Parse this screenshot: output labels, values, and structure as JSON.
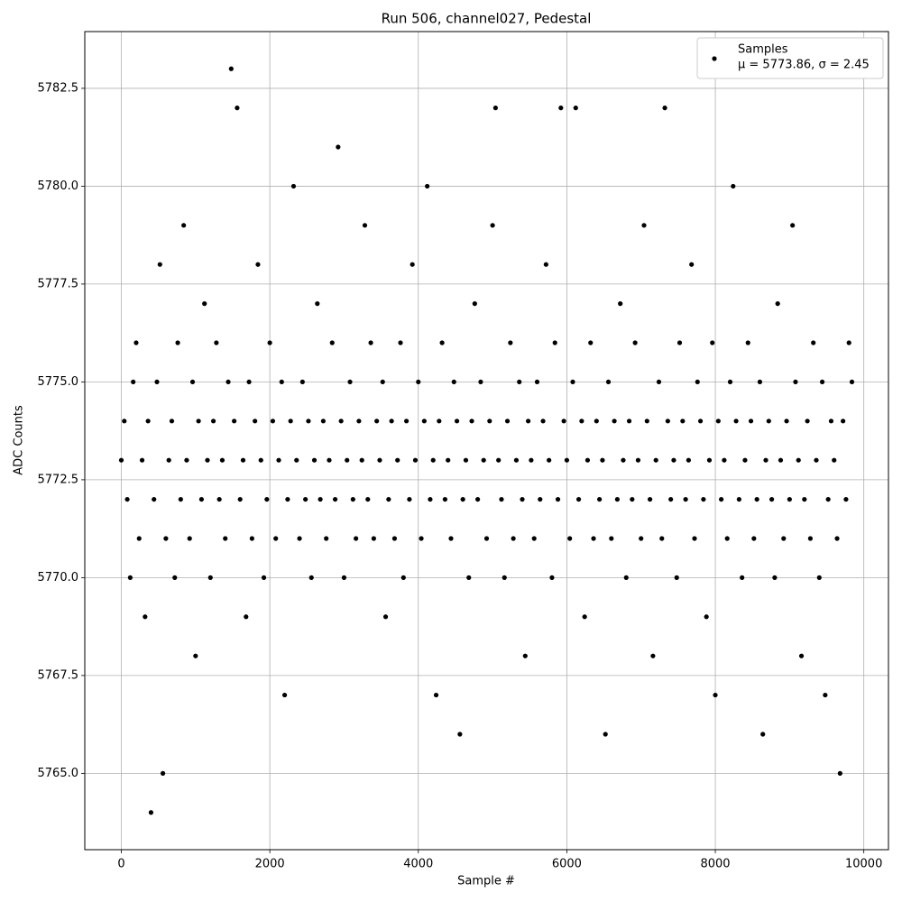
{
  "chart_data": {
    "type": "scatter",
    "title": "Run 506, channel027, Pedestal",
    "xlabel": "Sample #",
    "ylabel": "ADC Counts",
    "legend_note": "μ = 5773.86, σ = 2.45",
    "legend": "upper right",
    "grid": true,
    "xlim": [
      -492,
      10332
    ],
    "ylim": [
      5763.05,
      5783.95
    ],
    "xticks": [
      0,
      2000,
      4000,
      6000,
      8000,
      10000
    ],
    "yticks": [
      {
        "value": 5765,
        "label": "5765.0"
      },
      {
        "value": 5767.5,
        "label": "5767.5"
      },
      {
        "value": 5770,
        "label": "5770.0"
      },
      {
        "value": 5772.5,
        "label": "5772.5"
      },
      {
        "value": 5775,
        "label": "5775.0"
      },
      {
        "value": 5777.5,
        "label": "5777.5"
      },
      {
        "value": 5780,
        "label": "5780.0"
      },
      {
        "value": 5782.5,
        "label": "5782.5"
      }
    ],
    "series": [
      {
        "name": "Samples",
        "color": "#000000",
        "x": [
          0,
          40,
          80,
          120,
          160,
          200,
          240,
          280,
          320,
          360,
          400,
          440,
          480,
          520,
          560,
          600,
          640,
          680,
          720,
          760,
          800,
          840,
          880,
          920,
          960,
          1000,
          1040,
          1080,
          1120,
          1160,
          1200,
          1240,
          1280,
          1320,
          1360,
          1400,
          1440,
          1480,
          1520,
          1560,
          1600,
          1640,
          1680,
          1720,
          1760,
          1800,
          1840,
          1880,
          1920,
          1960,
          2000,
          2040,
          2080,
          2120,
          2160,
          2200,
          2240,
          2280,
          2320,
          2360,
          2400,
          2440,
          2480,
          2520,
          2560,
          2600,
          2640,
          2680,
          2720,
          2760,
          2800,
          2840,
          2880,
          2920,
          2960,
          3000,
          3040,
          3080,
          3120,
          3160,
          3200,
          3240,
          3280,
          3320,
          3360,
          3400,
          3440,
          3480,
          3520,
          3560,
          3600,
          3640,
          3680,
          3720,
          3760,
          3800,
          3840,
          3880,
          3920,
          3960,
          4000,
          4040,
          4080,
          4120,
          4160,
          4200,
          4240,
          4280,
          4320,
          4360,
          4400,
          4440,
          4480,
          4520,
          4560,
          4600,
          4640,
          4680,
          4720,
          4760,
          4800,
          4840,
          4880,
          4920,
          4960,
          5000,
          5040,
          5080,
          5120,
          5160,
          5200,
          5240,
          5280,
          5320,
          5360,
          5400,
          5440,
          5480,
          5520,
          5560,
          5600,
          5640,
          5680,
          5720,
          5760,
          5800,
          5840,
          5880,
          5920,
          5960,
          6000,
          6040,
          6080,
          6120,
          6160,
          6200,
          6240,
          6280,
          6320,
          6360,
          6400,
          6440,
          6480,
          6520,
          6560,
          6600,
          6640,
          6680,
          6720,
          6760,
          6800,
          6840,
          6880,
          6920,
          6960,
          7000,
          7040,
          7080,
          7120,
          7160,
          7200,
          7240,
          7280,
          7320,
          7360,
          7400,
          7440,
          7480,
          7520,
          7560,
          7600,
          7640,
          7680,
          7720,
          7760,
          7800,
          7840,
          7880,
          7920,
          7960,
          8000,
          8040,
          8080,
          8120,
          8160,
          8200,
          8240,
          8280,
          8320,
          8360,
          8400,
          8440,
          8480,
          8520,
          8560,
          8600,
          8640,
          8680,
          8720,
          8760,
          8800,
          8840,
          8880,
          8920,
          8960,
          9000,
          9040,
          9080,
          9120,
          9160,
          9200,
          9240,
          9280,
          9320,
          9360,
          9400,
          9440,
          9480,
          9520,
          9560,
          9600,
          9640,
          9680,
          9720,
          9760,
          9800,
          9840
        ],
        "values": [
          5773,
          5774,
          5772,
          5770,
          5775,
          5776,
          5771,
          5773,
          5769,
          5774,
          5764,
          5772,
          5775,
          5778,
          5765,
          5771,
          5773,
          5774,
          5770,
          5776,
          5772,
          5779,
          5773,
          5771,
          5775,
          5768,
          5774,
          5772,
          5777,
          5773,
          5770,
          5774,
          5776,
          5772,
          5773,
          5771,
          5775,
          5783,
          5774,
          5782,
          5772,
          5773,
          5769,
          5775,
          5771,
          5774,
          5778,
          5773,
          5770,
          5772,
          5776,
          5774,
          5771,
          5773,
          5775,
          5767,
          5772,
          5774,
          5780,
          5773,
          5771,
          5775,
          5772,
          5774,
          5770,
          5773,
          5777,
          5772,
          5774,
          5771,
          5773,
          5776,
          5772,
          5781,
          5774,
          5770,
          5773,
          5775,
          5772,
          5771,
          5774,
          5773,
          5779,
          5772,
          5776,
          5771,
          5774,
          5773,
          5775,
          5769,
          5772,
          5774,
          5771,
          5773,
          5776,
          5770,
          5774,
          5772,
          5778,
          5773,
          5775,
          5771,
          5774,
          5780,
          5772,
          5773,
          5767,
          5774,
          5776,
          5772,
          5773,
          5771,
          5775,
          5774,
          5766,
          5772,
          5773,
          5770,
          5774,
          5777,
          5772,
          5775,
          5773,
          5771,
          5774,
          5779,
          5782,
          5773,
          5772,
          5770,
          5774,
          5776,
          5771,
          5773,
          5775,
          5772,
          5768,
          5774,
          5773,
          5771,
          5775,
          5772,
          5774,
          5778,
          5773,
          5770,
          5776,
          5772,
          5782,
          5774,
          5773,
          5771,
          5775,
          5782,
          5772,
          5774,
          5769,
          5773,
          5776,
          5771,
          5774,
          5772,
          5773,
          5766,
          5775,
          5771,
          5774,
          5772,
          5777,
          5773,
          5770,
          5774,
          5772,
          5776,
          5773,
          5771,
          5779,
          5774,
          5772,
          5768,
          5773,
          5775,
          5771,
          5782,
          5774,
          5772,
          5773,
          5770,
          5776,
          5774,
          5772,
          5773,
          5778,
          5771,
          5775,
          5774,
          5772,
          5769,
          5773,
          5776,
          5767,
          5774,
          5772,
          5773,
          5771,
          5775,
          5780,
          5774,
          5772,
          5770,
          5773,
          5776,
          5774,
          5771,
          5772,
          5775,
          5766,
          5773,
          5774,
          5772,
          5770,
          5777,
          5773,
          5771,
          5774,
          5772,
          5779,
          5775,
          5773,
          5768,
          5772,
          5774,
          5771,
          5776,
          5773,
          5770,
          5775,
          5767,
          5772,
          5774,
          5773,
          5771,
          5765,
          5774,
          5772,
          5776,
          5775
        ]
      }
    ]
  }
}
